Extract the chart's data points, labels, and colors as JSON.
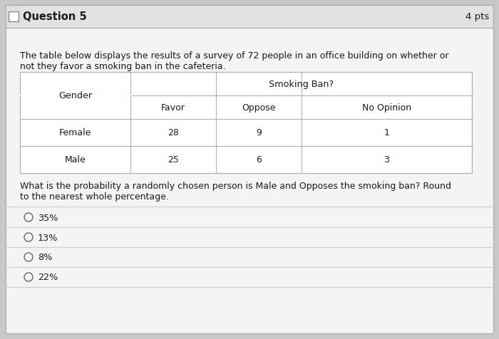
{
  "title": "Question 5",
  "pts": "4 pts",
  "description_line1": "The table below displays the results of a survey of 72 people in an office building on whether or",
  "description_line2": "not they favor a smoking ban in the cafeteria.",
  "table_header_main": "Smoking Ban?",
  "table_col0_header": "Gender",
  "table_col1_header": "Favor",
  "table_col2_header": "Oppose",
  "table_col3_header": "No Opinion",
  "row1_label": "Female",
  "row1_c1": "28",
  "row1_c2": "9",
  "row1_c3": "1",
  "row2_label": "Male",
  "row2_c1": "25",
  "row2_c2": "6",
  "row2_c3": "3",
  "question_line1": "What is the probability a randomly chosen person is Male and Opposes the smoking ban? Round",
  "question_line2": "to the nearest whole percentage.",
  "choices": [
    "35%",
    "13%",
    "8%",
    "22%"
  ],
  "bg_outer": "#c8c8c8",
  "bg_inner": "#f4f4f4",
  "bg_header": "#e2e2e2",
  "text_color": "#1a1a1a",
  "table_border_color": "#b0b0b0",
  "choice_circle_color": "#666666",
  "separator_color": "#cccccc",
  "header_border_color": "#aaaaaa"
}
